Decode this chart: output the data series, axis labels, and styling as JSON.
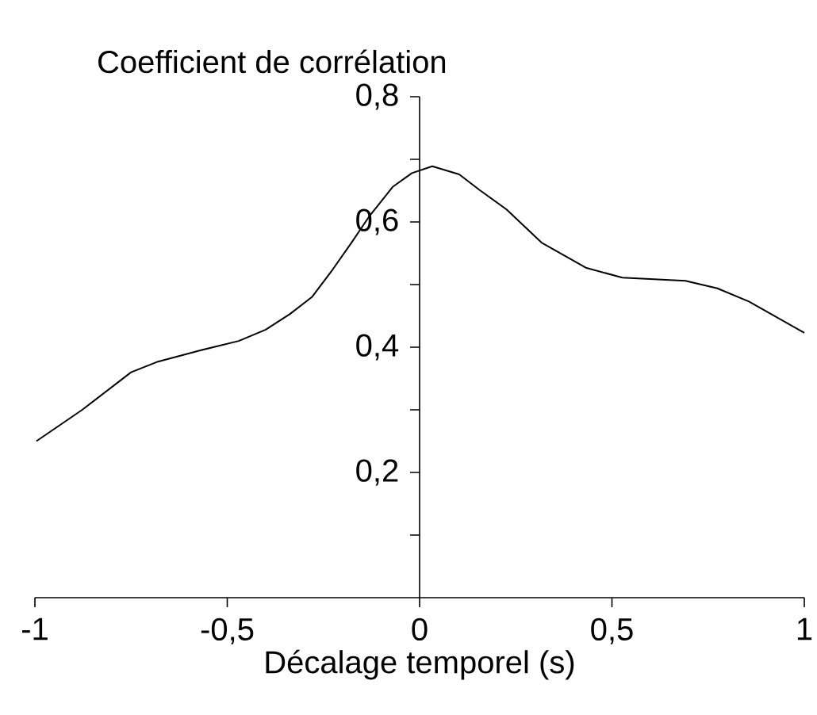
{
  "chart_data": {
    "type": "line",
    "ylabel": "Coefficient de corrélation",
    "xlabel": "Décalage temporel (s)",
    "x": [
      -0.996,
      -0.877,
      -0.75,
      -0.68,
      -0.57,
      -0.47,
      -0.4,
      -0.337,
      -0.28,
      -0.226,
      -0.177,
      -0.132,
      -0.07,
      -0.02,
      0.033,
      0.103,
      0.156,
      0.226,
      0.317,
      0.432,
      0.527,
      0.691,
      0.774,
      0.856,
      1.0
    ],
    "values": [
      0.25,
      0.3,
      0.36,
      0.377,
      0.395,
      0.41,
      0.428,
      0.453,
      0.48,
      0.524,
      0.567,
      0.608,
      0.656,
      0.678,
      0.689,
      0.676,
      0.651,
      0.62,
      0.567,
      0.527,
      0.511,
      0.506,
      0.494,
      0.473,
      0.423
    ],
    "color": "#000000",
    "marker": "none",
    "line_style": "solid",
    "xlim": [
      -1,
      1
    ],
    "ylim": [
      0,
      0.8
    ],
    "xticks": [
      {
        "value": -1,
        "label": "-1"
      },
      {
        "value": -0.5,
        "label": "-0,5"
      },
      {
        "value": 0,
        "label": "0"
      },
      {
        "value": 0.5,
        "label": "0,5"
      },
      {
        "value": 1,
        "label": "1"
      }
    ],
    "yticks": [
      {
        "value": 0.1,
        "label": null
      },
      {
        "value": 0.2,
        "label": "0,2"
      },
      {
        "value": 0.3,
        "label": null
      },
      {
        "value": 0.4,
        "label": "0,4"
      },
      {
        "value": 0.5,
        "label": null
      },
      {
        "value": 0.6,
        "label": "0,6"
      },
      {
        "value": 0.7,
        "label": null
      },
      {
        "value": 0.8,
        "label": "0,8"
      }
    ]
  }
}
